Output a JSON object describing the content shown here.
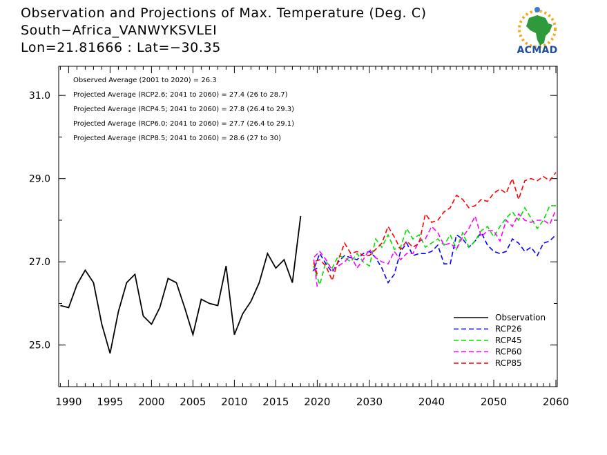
{
  "header": {
    "title_line1": "Observation and Projections of Max. Temperature (Deg. C)",
    "title_line2": "South−Africa_VANWYKSVLEI",
    "title_line3": "Lon=21.81666 : Lat=−30.35"
  },
  "logo": {
    "text": "ACMAD",
    "colors": {
      "text": "#1f4fa0",
      "africa": "#2e9a3c",
      "sun": "#f2a91a"
    }
  },
  "chart_data": {
    "type": "line",
    "title": "Observation and Projections of Max. Temperature (Deg. C)",
    "xlabel": "",
    "ylabel": "",
    "grid": false,
    "legend_position": "bottom-right",
    "ylim": [
      24.0,
      31.7
    ],
    "x_ticks_left": [
      "1990",
      "1995",
      "2000",
      "2005",
      "2010",
      "2015",
      "2020"
    ],
    "x_ticks_right": [
      "2030",
      "2040",
      "2050",
      "2060"
    ],
    "y_ticks": [
      "25.0",
      "27.0",
      "29.0",
      "31.0"
    ],
    "annotations": [
      "Observed Average (2001 to 2020) = 26.3",
      "Projected Average (RCP2.6; 2041 to 2060) = 27.4 (26 to 28.7)",
      "Projected Average (RCP4.5; 2041 to 2060) = 27.8 (26.4 to 29.3)",
      "Projected Average (RCP6.0; 2041 to 2060) = 27.7 (26.4 to 29.1)",
      "Projected Average (RCP8.5; 2041 to 2060) = 28.6 (27 to 30)"
    ],
    "observation": {
      "name": "Observation",
      "color": "#000000",
      "x": [
        1989,
        1990,
        1991,
        1992,
        1993,
        1994,
        1995,
        1996,
        1997,
        1998,
        1999,
        2000,
        2001,
        2002,
        2003,
        2004,
        2005,
        2006,
        2007,
        2008,
        2009,
        2010,
        2011,
        2012,
        2013,
        2014,
        2015,
        2016,
        2017,
        2018,
        2019
      ],
      "values": [
        25.95,
        25.9,
        26.45,
        26.8,
        26.5,
        25.5,
        24.8,
        25.8,
        26.5,
        26.7,
        25.7,
        25.5,
        25.9,
        26.6,
        26.5,
        25.9,
        25.25,
        26.1,
        26.0,
        25.95,
        26.9,
        25.25,
        25.75,
        26.05,
        26.5,
        27.2,
        26.85,
        27.05,
        26.5,
        28.1,
        null
      ],
      "years_from": 1989
    },
    "projection_x": [
      2020,
      2021,
      2022,
      2023,
      2024,
      2025,
      2026,
      2027,
      2028,
      2029,
      2030,
      2031,
      2032,
      2033,
      2034,
      2035,
      2036,
      2037,
      2038,
      2039,
      2040,
      2041,
      2042,
      2043,
      2044,
      2045,
      2046,
      2047,
      2048,
      2049,
      2050,
      2051,
      2052,
      2053,
      2054,
      2055,
      2056,
      2057,
      2058,
      2059,
      2060
    ],
    "series": [
      {
        "name": "RCP26",
        "color": "#0000ff",
        "values": [
          26.85,
          26.8,
          27.2,
          26.95,
          26.75,
          27.0,
          27.15,
          27.1,
          27.05,
          27.2,
          27.25,
          27.1,
          26.85,
          26.5,
          26.7,
          27.25,
          27.45,
          27.15,
          27.2,
          27.2,
          27.25,
          27.4,
          26.95,
          26.95,
          27.65,
          27.55,
          27.35,
          27.5,
          27.7,
          27.4,
          27.25,
          27.2,
          27.25,
          27.55,
          27.45,
          27.25,
          27.35,
          27.15,
          27.45,
          27.5,
          27.65
        ]
      },
      {
        "name": "RCP45",
        "color": "#00e000",
        "values": [
          26.7,
          26.9,
          26.45,
          27.0,
          26.85,
          27.15,
          27.1,
          27.0,
          27.2,
          27.0,
          26.9,
          27.55,
          27.35,
          27.65,
          27.3,
          27.35,
          27.8,
          27.55,
          27.65,
          27.35,
          27.45,
          27.55,
          27.4,
          27.65,
          27.3,
          27.7,
          27.35,
          27.5,
          27.75,
          27.85,
          27.6,
          27.85,
          28.05,
          28.2,
          28.0,
          28.3,
          28.05,
          27.8,
          28.0,
          28.35,
          28.35
        ]
      },
      {
        "name": "RCP60",
        "color": "#ff00ff",
        "values": [
          26.4,
          27.1,
          27.25,
          27.05,
          26.8,
          26.9,
          27.0,
          27.15,
          26.85,
          27.05,
          27.3,
          27.1,
          27.0,
          26.95,
          27.25,
          27.05,
          27.2,
          27.2,
          27.5,
          27.55,
          27.85,
          27.7,
          27.4,
          27.45,
          27.3,
          27.6,
          27.8,
          28.1,
          27.6,
          27.75,
          27.75,
          27.5,
          28.0,
          27.85,
          28.15,
          28.0,
          27.95,
          28.0,
          28.0,
          27.9,
          28.25
        ]
      },
      {
        "name": "RCP85",
        "color": "#ff0000",
        "values": [
          26.7,
          27.0,
          27.05,
          26.9,
          26.55,
          27.05,
          27.45,
          27.2,
          27.25,
          27.15,
          27.15,
          27.3,
          27.45,
          27.85,
          27.6,
          27.3,
          27.5,
          27.35,
          27.45,
          28.15,
          27.95,
          28.0,
          28.2,
          28.3,
          28.6,
          28.5,
          28.3,
          28.35,
          28.5,
          28.45,
          28.65,
          28.75,
          28.65,
          29.0,
          28.5,
          28.95,
          29.0,
          28.95,
          29.05,
          28.95,
          29.15
        ]
      }
    ]
  }
}
